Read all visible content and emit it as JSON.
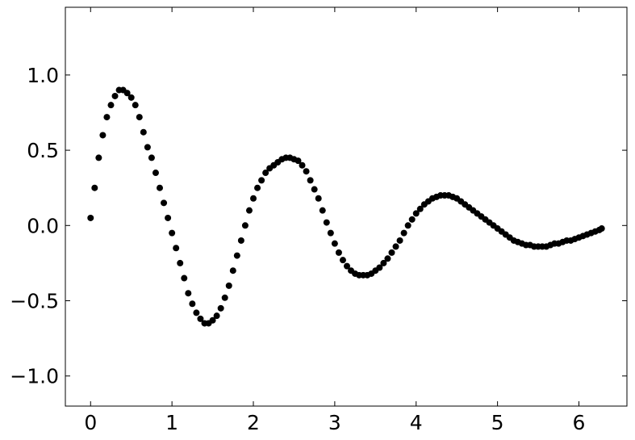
{
  "chart_data": {
    "type": "scatter",
    "title": "",
    "xlabel": "",
    "ylabel": "",
    "xlim": [
      -0.31,
      6.59
    ],
    "ylim": [
      -1.2,
      1.45
    ],
    "xticks": [
      0,
      1,
      2,
      3,
      4,
      5,
      6
    ],
    "xtick_labels": [
      "0",
      "1",
      "2",
      "3",
      "4",
      "5",
      "6"
    ],
    "yticks": [
      -1.0,
      -0.5,
      0.0,
      0.5,
      1.0
    ],
    "ytick_labels": [
      "−1.0",
      "−0.5",
      "0.0",
      "0.5",
      "1.0"
    ],
    "grid": false,
    "marker_color": "#000000",
    "series": [
      {
        "x": [
          0.0,
          0.05,
          0.1,
          0.15,
          0.2,
          0.25,
          0.3,
          0.35,
          0.4,
          0.45,
          0.5,
          0.55,
          0.6,
          0.65,
          0.7,
          0.75,
          0.8,
          0.85,
          0.9,
          0.95,
          1.0,
          1.05,
          1.1,
          1.15,
          1.2,
          1.25,
          1.3,
          1.35,
          1.4,
          1.45,
          1.5,
          1.55,
          1.6,
          1.65,
          1.7,
          1.75,
          1.8,
          1.85,
          1.9,
          1.95,
          2.0,
          2.05,
          2.1,
          2.15,
          2.2,
          2.25,
          2.3,
          2.35,
          2.4,
          2.45,
          2.5,
          2.55,
          2.6,
          2.65,
          2.7,
          2.75,
          2.8,
          2.85,
          2.9,
          2.95,
          3.0,
          3.05,
          3.1,
          3.15,
          3.2,
          3.25,
          3.3,
          3.35,
          3.4,
          3.45,
          3.5,
          3.55,
          3.6,
          3.65,
          3.7,
          3.75,
          3.8,
          3.85,
          3.9,
          3.95,
          4.0,
          4.05,
          4.1,
          4.15,
          4.2,
          4.25,
          4.3,
          4.35,
          4.4,
          4.45,
          4.5,
          4.55,
          4.6,
          4.65,
          4.7,
          4.75,
          4.8,
          4.85,
          4.9,
          4.95,
          5.0,
          5.05,
          5.1,
          5.15,
          5.2,
          5.25,
          5.3,
          5.35,
          5.4,
          5.45,
          5.5,
          5.55,
          5.6,
          5.65,
          5.7,
          5.75,
          5.8,
          5.85,
          5.9,
          5.95,
          6.0,
          6.05,
          6.1,
          6.15,
          6.2,
          6.25,
          6.28
        ],
        "y": [
          0.05,
          0.25,
          0.45,
          0.6,
          0.72,
          0.8,
          0.86,
          0.9,
          0.9,
          0.88,
          0.85,
          0.8,
          0.72,
          0.62,
          0.52,
          0.45,
          0.35,
          0.25,
          0.15,
          0.05,
          -0.05,
          -0.15,
          -0.25,
          -0.35,
          -0.45,
          -0.52,
          -0.58,
          -0.62,
          -0.65,
          -0.65,
          -0.63,
          -0.6,
          -0.55,
          -0.48,
          -0.4,
          -0.3,
          -0.2,
          -0.1,
          0.0,
          0.1,
          0.18,
          0.25,
          0.3,
          0.35,
          0.38,
          0.4,
          0.42,
          0.44,
          0.45,
          0.45,
          0.44,
          0.43,
          0.4,
          0.36,
          0.3,
          0.24,
          0.18,
          0.1,
          0.02,
          -0.05,
          -0.12,
          -0.18,
          -0.23,
          -0.27,
          -0.3,
          -0.32,
          -0.33,
          -0.33,
          -0.33,
          -0.32,
          -0.3,
          -0.28,
          -0.25,
          -0.22,
          -0.18,
          -0.14,
          -0.1,
          -0.05,
          0.0,
          0.04,
          0.08,
          0.11,
          0.14,
          0.16,
          0.18,
          0.19,
          0.2,
          0.2,
          0.2,
          0.19,
          0.18,
          0.16,
          0.14,
          0.12,
          0.1,
          0.08,
          0.06,
          0.04,
          0.02,
          0.0,
          -0.02,
          -0.04,
          -0.06,
          -0.08,
          -0.1,
          -0.11,
          -0.12,
          -0.13,
          -0.13,
          -0.14,
          -0.14,
          -0.14,
          -0.14,
          -0.13,
          -0.12,
          -0.12,
          -0.11,
          -0.1,
          -0.1,
          -0.09,
          -0.08,
          -0.07,
          -0.06,
          -0.05,
          -0.04,
          -0.03,
          -0.02
        ]
      }
    ]
  }
}
